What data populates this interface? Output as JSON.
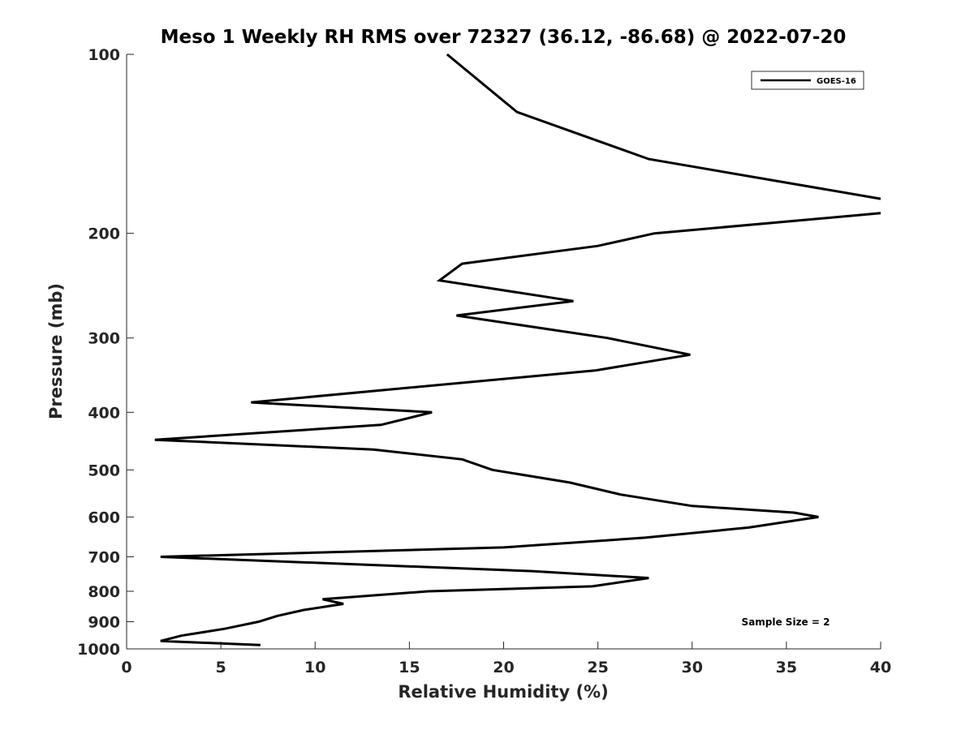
{
  "chart_data": {
    "type": "line",
    "title": "Meso 1 Weekly RH RMS over 72327 (36.12, -86.68) @ 2022-07-20",
    "xlabel": "Relative Humidity (%)",
    "ylabel": "Pressure (mb)",
    "xlim": [
      0,
      40
    ],
    "ylim": [
      100,
      1000
    ],
    "y_scale": "log",
    "y_reversed": true,
    "x_ticks": [
      "0",
      "5",
      "10",
      "15",
      "20",
      "25",
      "30",
      "35",
      "40"
    ],
    "y_ticks": [
      "100",
      "200",
      "300",
      "400",
      "500",
      "600",
      "700",
      "800",
      "900",
      "1000"
    ],
    "grid": false,
    "legend_position": "top-right",
    "series": [
      {
        "name": "GOES-16",
        "color": "#000000",
        "x": [
          17.0,
          20.7,
          27.7,
          40.0,
          null,
          40.0,
          28.0,
          25.0,
          17.8,
          16.6,
          23.7,
          17.5,
          25.5,
          29.9,
          24.9,
          6.6,
          16.2,
          13.5,
          1.5,
          13.1,
          17.8,
          19.4,
          23.5,
          26.2,
          30.0,
          35.4,
          36.7,
          33.0,
          27.5,
          20.0,
          1.8,
          21.5,
          27.7,
          24.7,
          16.0,
          10.4,
          11.5,
          9.4,
          8.0,
          7.0,
          5.2,
          2.9,
          1.8,
          7.1
        ],
        "y": [
          100,
          125,
          150,
          175,
          null,
          185,
          200,
          210,
          225,
          240,
          260,
          275,
          300,
          320,
          340,
          385,
          400,
          420,
          445,
          462,
          480,
          500,
          525,
          550,
          575,
          590,
          600,
          625,
          650,
          675,
          700,
          740,
          760,
          785,
          800,
          825,
          840,
          860,
          880,
          900,
          925,
          950,
          970,
          985
        ]
      }
    ],
    "annotations": [
      "Sample Size = 2"
    ]
  }
}
